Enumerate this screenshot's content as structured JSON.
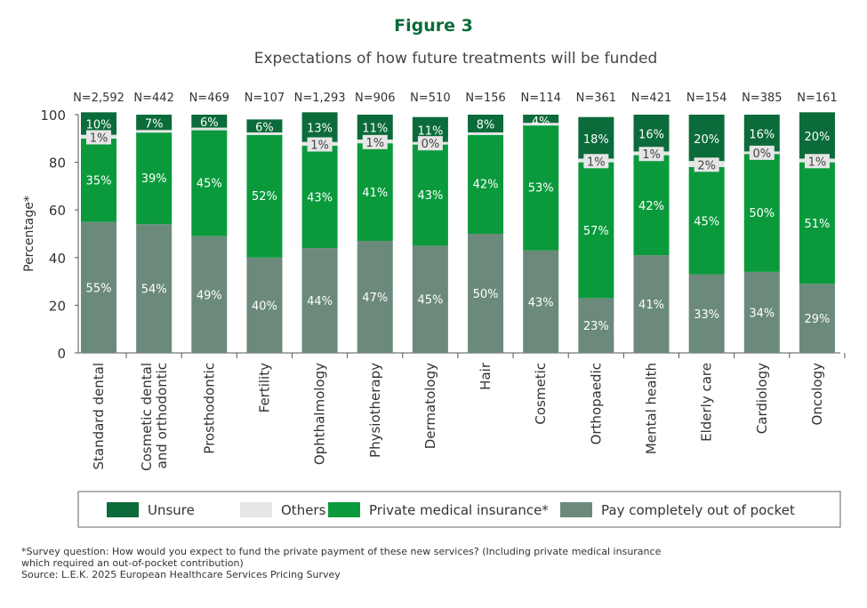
{
  "figure_label": "Figure 3",
  "chart_data": {
    "type": "bar",
    "stacked": true,
    "title": "Expectations of how future treatments will be funded",
    "ylabel": "Percentage*",
    "xlabel": "",
    "ylim": [
      0,
      100
    ],
    "yticks": [
      0,
      20,
      40,
      60,
      80,
      100
    ],
    "grid": false,
    "legend_position": "bottom",
    "categories": [
      "Standard dental",
      "Cosmetic dental and orthodontic",
      "Prosthodontic",
      "Fertility",
      "Ophthalmology",
      "Physiotherapy",
      "Dermatology",
      "Hair",
      "Cosmetic",
      "Orthopaedic",
      "Mental health",
      "Elderly care",
      "Cardiology",
      "Oncology"
    ],
    "category_lines": [
      [
        "Standard dental"
      ],
      [
        "Cosmetic dental",
        "and orthodontic"
      ],
      [
        "Prosthodontic"
      ],
      [
        "Fertility"
      ],
      [
        "Ophthalmology"
      ],
      [
        "Physiotherapy"
      ],
      [
        "Dermatology"
      ],
      [
        "Hair"
      ],
      [
        "Cosmetic"
      ],
      [
        "Orthopaedic"
      ],
      [
        "Mental health"
      ],
      [
        "Elderly care"
      ],
      [
        "Cardiology"
      ],
      [
        "Oncology"
      ]
    ],
    "sample_sizes": [
      "N=2,592",
      "N=442",
      "N=469",
      "N=107",
      "N=1,293",
      "N=906",
      "N=510",
      "N=156",
      "N=114",
      "N=361",
      "N=421",
      "N=154",
      "N=385",
      "N=161"
    ],
    "series": [
      {
        "name": "Pay completely out of pocket",
        "color": "#6b8a7b",
        "values": [
          55,
          54,
          49,
          40,
          44,
          47,
          45,
          50,
          43,
          23,
          41,
          33,
          34,
          29
        ]
      },
      {
        "name": "Private medical insurance*",
        "color": "#0a9a3c",
        "values": [
          35,
          39,
          45,
          52,
          43,
          41,
          43,
          42,
          53,
          57,
          42,
          45,
          50,
          51
        ]
      },
      {
        "name": "Others",
        "color": "#e6e6e6",
        "values": [
          1,
          null,
          null,
          null,
          1,
          1,
          0,
          null,
          null,
          1,
          1,
          2,
          0,
          1
        ]
      },
      {
        "name": "Unsure",
        "color": "#0b6b3a",
        "values": [
          10,
          7,
          6,
          6,
          13,
          11,
          11,
          8,
          4,
          18,
          16,
          20,
          16,
          20
        ]
      }
    ],
    "legend_order": [
      "Unsure",
      "Others",
      "Private medical insurance*",
      "Pay completely out of pocket"
    ]
  },
  "footnote": [
    "*Survey question: How would you expect to fund the private payment of these new services? (Including private medical insurance which required an out-of-pocket contribution)",
    "Source: L.E.K. 2025 European Healthcare Services Pricing Survey"
  ]
}
